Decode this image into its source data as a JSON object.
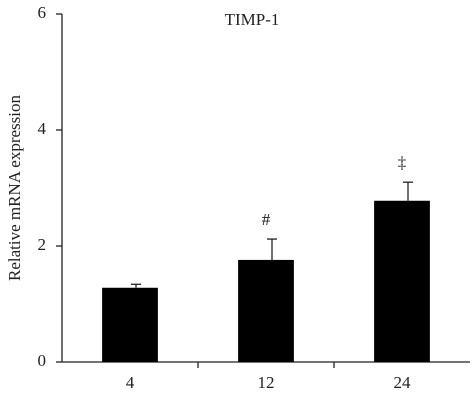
{
  "chart_data": {
    "type": "bar",
    "title": "TIMP-1",
    "y_label": "Relative mRNA expression",
    "categories": [
      "4",
      "12",
      "24"
    ],
    "values": [
      1.28,
      1.76,
      2.78
    ],
    "errors": [
      0.06,
      0.36,
      0.32
    ],
    "annotations": [
      null,
      "#",
      "‡"
    ],
    "color": "#000000",
    "ylim": [
      0,
      6
    ],
    "yticks": [
      0,
      2,
      4,
      6
    ]
  }
}
